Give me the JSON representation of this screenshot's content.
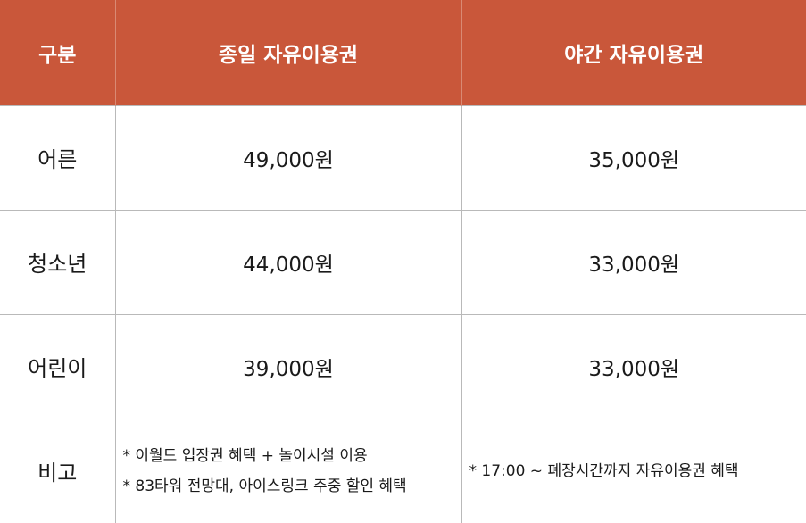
{
  "header": {
    "category": "구분",
    "full_day": "종일 자유이용권",
    "night": "야간 자유이용권"
  },
  "rows": [
    {
      "category": "어른",
      "full_day": "49,000원",
      "night": "35,000원"
    },
    {
      "category": "청소년",
      "full_day": "44,000원",
      "night": "33,000원"
    },
    {
      "category": "어린이",
      "full_day": "39,000원",
      "night": "33,000원"
    }
  ],
  "notes": {
    "category": "비고",
    "full_day": [
      "* 이월드 입장권 혜택 + 놀이시설 이용",
      "* 83타워 전망대, 아이스링크 주중 할인 혜택"
    ],
    "night": [
      "* 17:00 ~ 폐장시간까지 자유이용권 혜택"
    ]
  },
  "colors": {
    "header_bg": "#c9573a",
    "header_text": "#ffffff",
    "border": "#b9b9b9"
  }
}
